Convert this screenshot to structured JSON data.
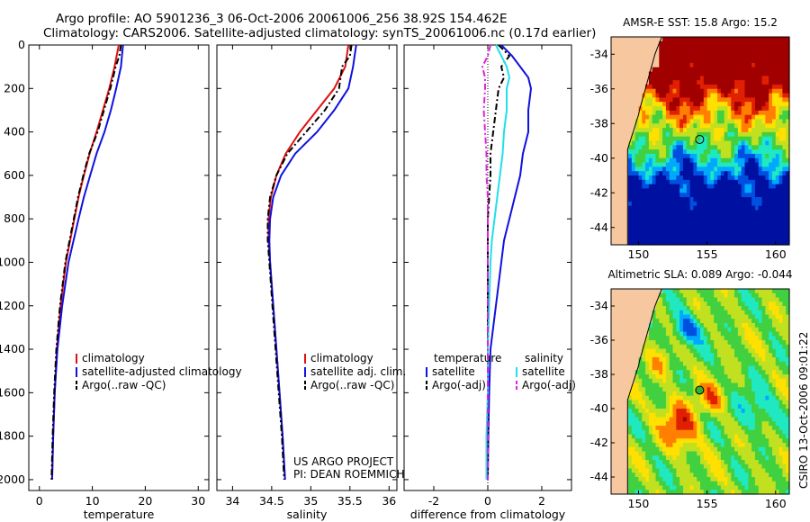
{
  "header": {
    "line1": "Argo profile: AO 5901236_3 06-Oct-2006 20061006_256 38.92S 154.462E",
    "line2": "Climatology: CARS2006. Satellite-adjusted climatology: synTS_20061006.nc (0.17d earlier)"
  },
  "colors": {
    "climatology": "#e01010",
    "satellite": "#1010e0",
    "argo": "#000000",
    "sat_diff": "#20e0e8",
    "argo_sal_diff": "#e020e0",
    "land": "#f7c8a0"
  },
  "chart_data": [
    {
      "type": "line",
      "name": "temperature-profile",
      "xlabel": "temperature",
      "xlim": [
        -2,
        32
      ],
      "ylim": [
        0,
        2050
      ],
      "xticks": [
        0,
        10,
        20,
        30
      ],
      "yticks": [
        0,
        200,
        400,
        600,
        800,
        1000,
        1200,
        1400,
        1600,
        1800,
        2000
      ],
      "depth": [
        0,
        50,
        100,
        200,
        300,
        400,
        500,
        600,
        700,
        800,
        1000,
        1200,
        1400,
        1600,
        1800,
        2000
      ],
      "series": [
        {
          "name": "climatology",
          "values": [
            15.0,
            14.6,
            14.2,
            13.2,
            12.0,
            10.8,
            9.5,
            8.4,
            7.4,
            6.6,
            5.0,
            4.0,
            3.3,
            2.9,
            2.6,
            2.4
          ]
        },
        {
          "name": "satellite-adjusted climatology",
          "values": [
            15.8,
            15.6,
            15.4,
            14.5,
            13.5,
            12.3,
            10.8,
            9.6,
            8.4,
            7.4,
            5.5,
            4.3,
            3.4,
            2.9,
            2.6,
            2.4
          ]
        },
        {
          "name": "Argo(..raw -QC)",
          "values": [
            15.4,
            15.1,
            14.4,
            13.4,
            12.2,
            11.0,
            9.4,
            8.3,
            7.3,
            6.5,
            4.9,
            3.9,
            3.2,
            2.8,
            2.5,
            2.3
          ]
        }
      ],
      "legend": [
        "climatology",
        "satellite-adjusted climatology",
        "Argo(..raw -QC)"
      ]
    },
    {
      "type": "line",
      "name": "salinity-profile",
      "xlabel": "salinity",
      "xlim": [
        33.8,
        36.1
      ],
      "ylim": [
        0,
        2050
      ],
      "xticks": [
        34,
        34.5,
        35,
        35.5,
        36
      ],
      "depth": [
        0,
        50,
        100,
        200,
        300,
        400,
        500,
        600,
        700,
        800,
        900,
        1000,
        1200,
        1400,
        1600,
        1800,
        2000
      ],
      "series": [
        {
          "name": "climatology",
          "values": [
            35.48,
            35.46,
            35.44,
            35.3,
            35.08,
            34.86,
            34.68,
            34.56,
            34.49,
            34.46,
            34.46,
            34.48,
            34.52,
            34.56,
            34.6,
            34.64,
            34.67
          ]
        },
        {
          "name": "satellite adj. clim.",
          "values": [
            35.58,
            35.56,
            35.54,
            35.48,
            35.3,
            35.08,
            34.8,
            34.62,
            34.52,
            34.48,
            34.47,
            34.48,
            34.52,
            34.56,
            34.6,
            34.64,
            34.67
          ]
        },
        {
          "name": "Argo(..raw -QC)",
          "values": [
            35.52,
            35.5,
            35.4,
            35.36,
            35.18,
            34.94,
            34.7,
            34.56,
            34.48,
            34.45,
            34.45,
            34.47,
            34.51,
            34.55,
            34.59,
            34.63,
            34.66
          ]
        }
      ],
      "legend": [
        "climatology",
        "satellite adj. clim.",
        "Argo(..raw -QC)"
      ],
      "annotation": [
        "US ARGO PROJECT",
        "PI: DEAN ROEMMICH"
      ]
    },
    {
      "type": "line",
      "name": "difference-profile",
      "xlabel": "difference from climatology",
      "xlim": [
        -3.1,
        3.1
      ],
      "ylim": [
        0,
        2050
      ],
      "xticks": [
        -2,
        0,
        2
      ],
      "depth": [
        0,
        50,
        100,
        150,
        200,
        300,
        400,
        500,
        600,
        700,
        800,
        900,
        1000,
        1200,
        1400,
        1600,
        1800,
        2000
      ],
      "series": [
        {
          "name": "temperature satellite",
          "values": [
            0.5,
            0.9,
            1.2,
            1.5,
            1.6,
            1.5,
            1.5,
            1.3,
            1.2,
            1.0,
            0.8,
            0.6,
            0.5,
            0.3,
            0.1,
            0.05,
            0.02,
            0.0
          ]
        },
        {
          "name": "temperature Argo(-adj)",
          "values": [
            0.4,
            0.8,
            0.5,
            0.6,
            0.4,
            0.3,
            0.2,
            0.1,
            0.1,
            0.05,
            0.0,
            0.0,
            0.0,
            0.0,
            0.0,
            0.0,
            0.0,
            0.0
          ]
        },
        {
          "name": "salinity satellite",
          "values": [
            0.3,
            0.5,
            0.7,
            0.8,
            0.7,
            0.7,
            0.6,
            0.55,
            0.45,
            0.35,
            0.25,
            0.15,
            0.1,
            0.05,
            0.0,
            0.0,
            -0.05,
            -0.05
          ]
        },
        {
          "name": "salinity Argo(-adj)",
          "values": [
            0.1,
            0.0,
            -0.2,
            -0.1,
            -0.1,
            -0.15,
            -0.1,
            -0.05,
            -0.05,
            0.0,
            0.0,
            0.0,
            0.0,
            0.0,
            0.0,
            0.0,
            0.0,
            0.0
          ]
        }
      ],
      "legend": {
        "temperature_heading": "temperature",
        "salinity_heading": "salinity",
        "temperature_items": [
          "satellite",
          "Argo(-adj)"
        ],
        "salinity_items": [
          "satellite",
          "Argo(-adj)"
        ]
      }
    },
    {
      "type": "heatmap",
      "name": "sst-map",
      "title": "AMSR-E SST: 15.8 Argo: 15.2",
      "xlim": [
        148,
        161
      ],
      "ylim": [
        -45,
        -33
      ],
      "xticks": [
        150,
        155,
        160
      ],
      "yticks": [
        -34,
        -36,
        -38,
        -40,
        -42,
        -44
      ],
      "float_position": {
        "lon": 154.46,
        "lat": -38.92
      },
      "colorscale": [
        "#0010a0",
        "#0050e0",
        "#00a8ff",
        "#20e8c0",
        "#40d040",
        "#c0e020",
        "#ffe000",
        "#ff8000",
        "#e02000",
        "#a00000"
      ],
      "value_range": [
        12.5,
        19.0
      ]
    },
    {
      "type": "heatmap",
      "name": "sla-map",
      "title": "Altimetric SLA: 0.089 Argo: -0.044",
      "xlim": [
        148,
        161
      ],
      "ylim": [
        -45,
        -33
      ],
      "xticks": [
        150,
        155,
        160
      ],
      "yticks": [
        -34,
        -36,
        -38,
        -40,
        -42,
        -44
      ],
      "float_position": {
        "lon": 154.46,
        "lat": -38.92
      },
      "colorscale": [
        "#0010a0",
        "#0050e0",
        "#00a8ff",
        "#20e8c0",
        "#40d040",
        "#c0e020",
        "#ffe000",
        "#ff8000",
        "#e02000",
        "#a00000"
      ],
      "value_range": [
        -0.4,
        0.4
      ]
    }
  ],
  "side_label": "CSIRO 13-Oct-2006 09:01:22"
}
